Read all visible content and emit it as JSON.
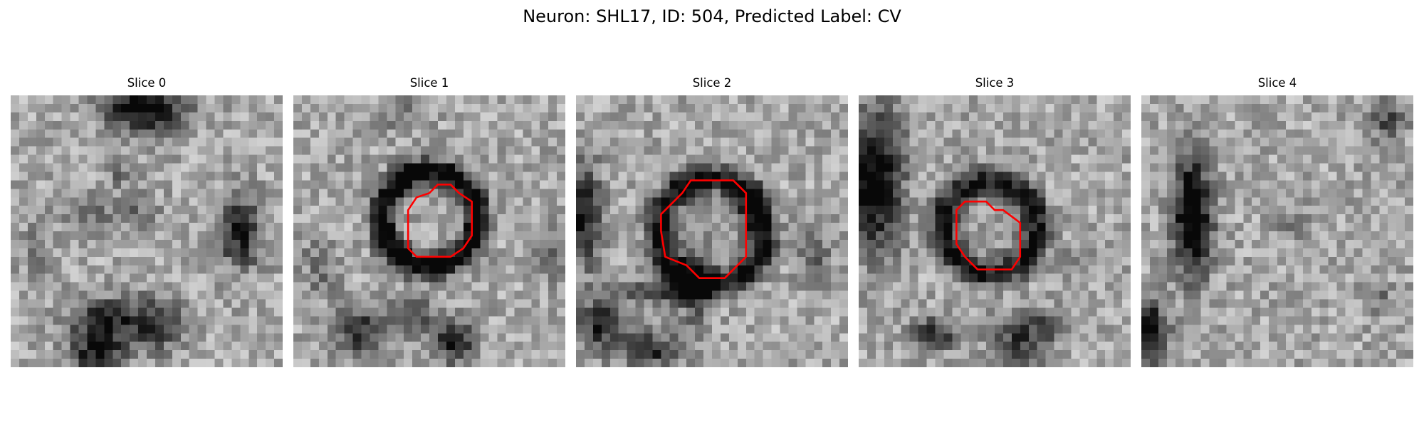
{
  "figure": {
    "title": "Neuron: SHL17, ID: 504, Predicted Label: CV"
  },
  "panels": [
    {
      "title": "Slice 0"
    },
    {
      "title": "Slice 1"
    },
    {
      "title": "Slice 2"
    },
    {
      "title": "Slice 3"
    },
    {
      "title": "Slice 4"
    }
  ],
  "colors": {
    "contour": "#ff0000",
    "background": "#ffffff"
  }
}
